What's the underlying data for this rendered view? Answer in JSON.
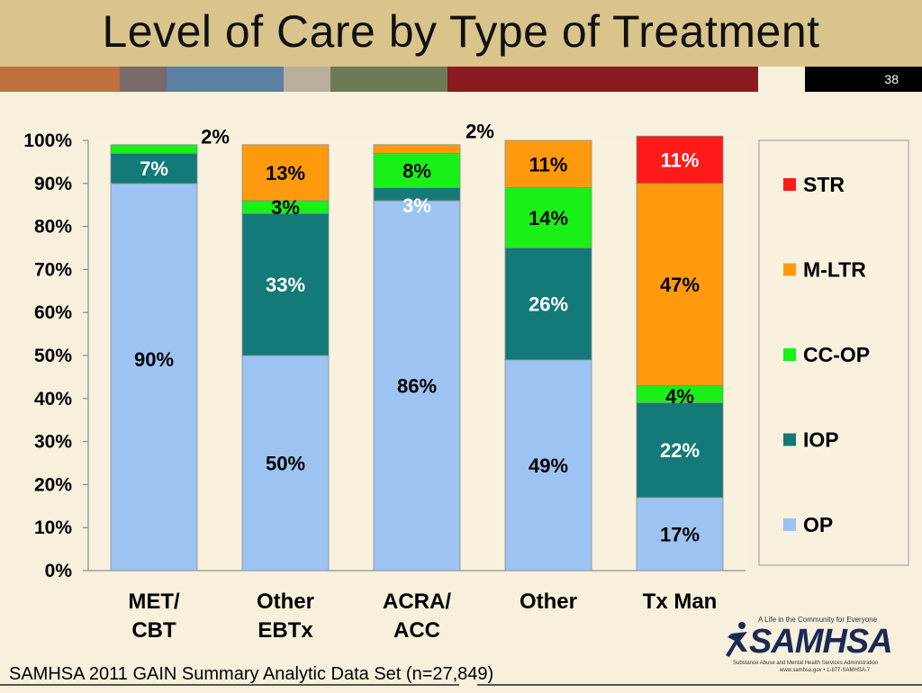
{
  "slide": {
    "title": "Level of Care by Type of Treatment",
    "number": "38",
    "source": "SAMHSA 2011 GAIN Summary Analytic Data Set (n=27,849)",
    "stripe_colors": [
      "#c0703f",
      "#7a6a6a",
      "#5b7fa0",
      "#b9ae9a",
      "#6c7a55",
      "#8a1a1e",
      "#f6f0dc",
      "#000000"
    ],
    "logo": {
      "tagline": "A Life in the Community for Everyone",
      "wordmark": "SAMHSA",
      "subtitle": "Substance Abuse and Mental Health Services Administration",
      "url": "www.samhsa.gov • 1-877-SAMHSA-7"
    }
  },
  "chart_data": {
    "type": "bar",
    "stacked": true,
    "categories": [
      [
        "MET/",
        "CBT"
      ],
      [
        "Other",
        "EBTx"
      ],
      [
        "ACRA/",
        "ACC"
      ],
      [
        "Other"
      ],
      [
        "Tx Man"
      ]
    ],
    "series": [
      {
        "name": "OP",
        "color": "#9dc3f2",
        "label_color": "#000000",
        "values": [
          90,
          50,
          86,
          49,
          17
        ],
        "labels": [
          "90%",
          "50%",
          "86%",
          "49%",
          "17%"
        ]
      },
      {
        "name": "IOP",
        "color": "#137a78",
        "label_color": "#ffffff",
        "values": [
          7,
          33,
          3,
          26,
          22
        ],
        "labels": [
          "7%",
          "33%",
          "3%",
          "26%",
          "22%"
        ]
      },
      {
        "name": "CC-OP",
        "color": "#18f018",
        "label_color": "#000000",
        "values": [
          2,
          3,
          8,
          14,
          4
        ],
        "labels": [
          "2%",
          "3%",
          "8%",
          "14%",
          "4%"
        ]
      },
      {
        "name": "M-LTR",
        "color": "#ff9a0e",
        "label_color": "#000000",
        "values": [
          0,
          13,
          2,
          11,
          47
        ],
        "labels": [
          "",
          "13%",
          "2%",
          "11%",
          "47%"
        ]
      },
      {
        "name": "STR",
        "color": "#ff1a1a",
        "label_color": "#ffffff",
        "values": [
          0,
          0,
          0,
          0,
          11
        ],
        "labels": [
          "",
          "",
          "",
          "",
          "11%"
        ]
      }
    ],
    "y_ticks": [
      "0%",
      "10%",
      "20%",
      "30%",
      "40%",
      "50%",
      "60%",
      "70%",
      "80%",
      "90%",
      "100%"
    ],
    "ylim": [
      0,
      100
    ],
    "legend_order": [
      "STR",
      "M-LTR",
      "CC-OP",
      "IOP",
      "OP"
    ],
    "legend_position": "right"
  }
}
